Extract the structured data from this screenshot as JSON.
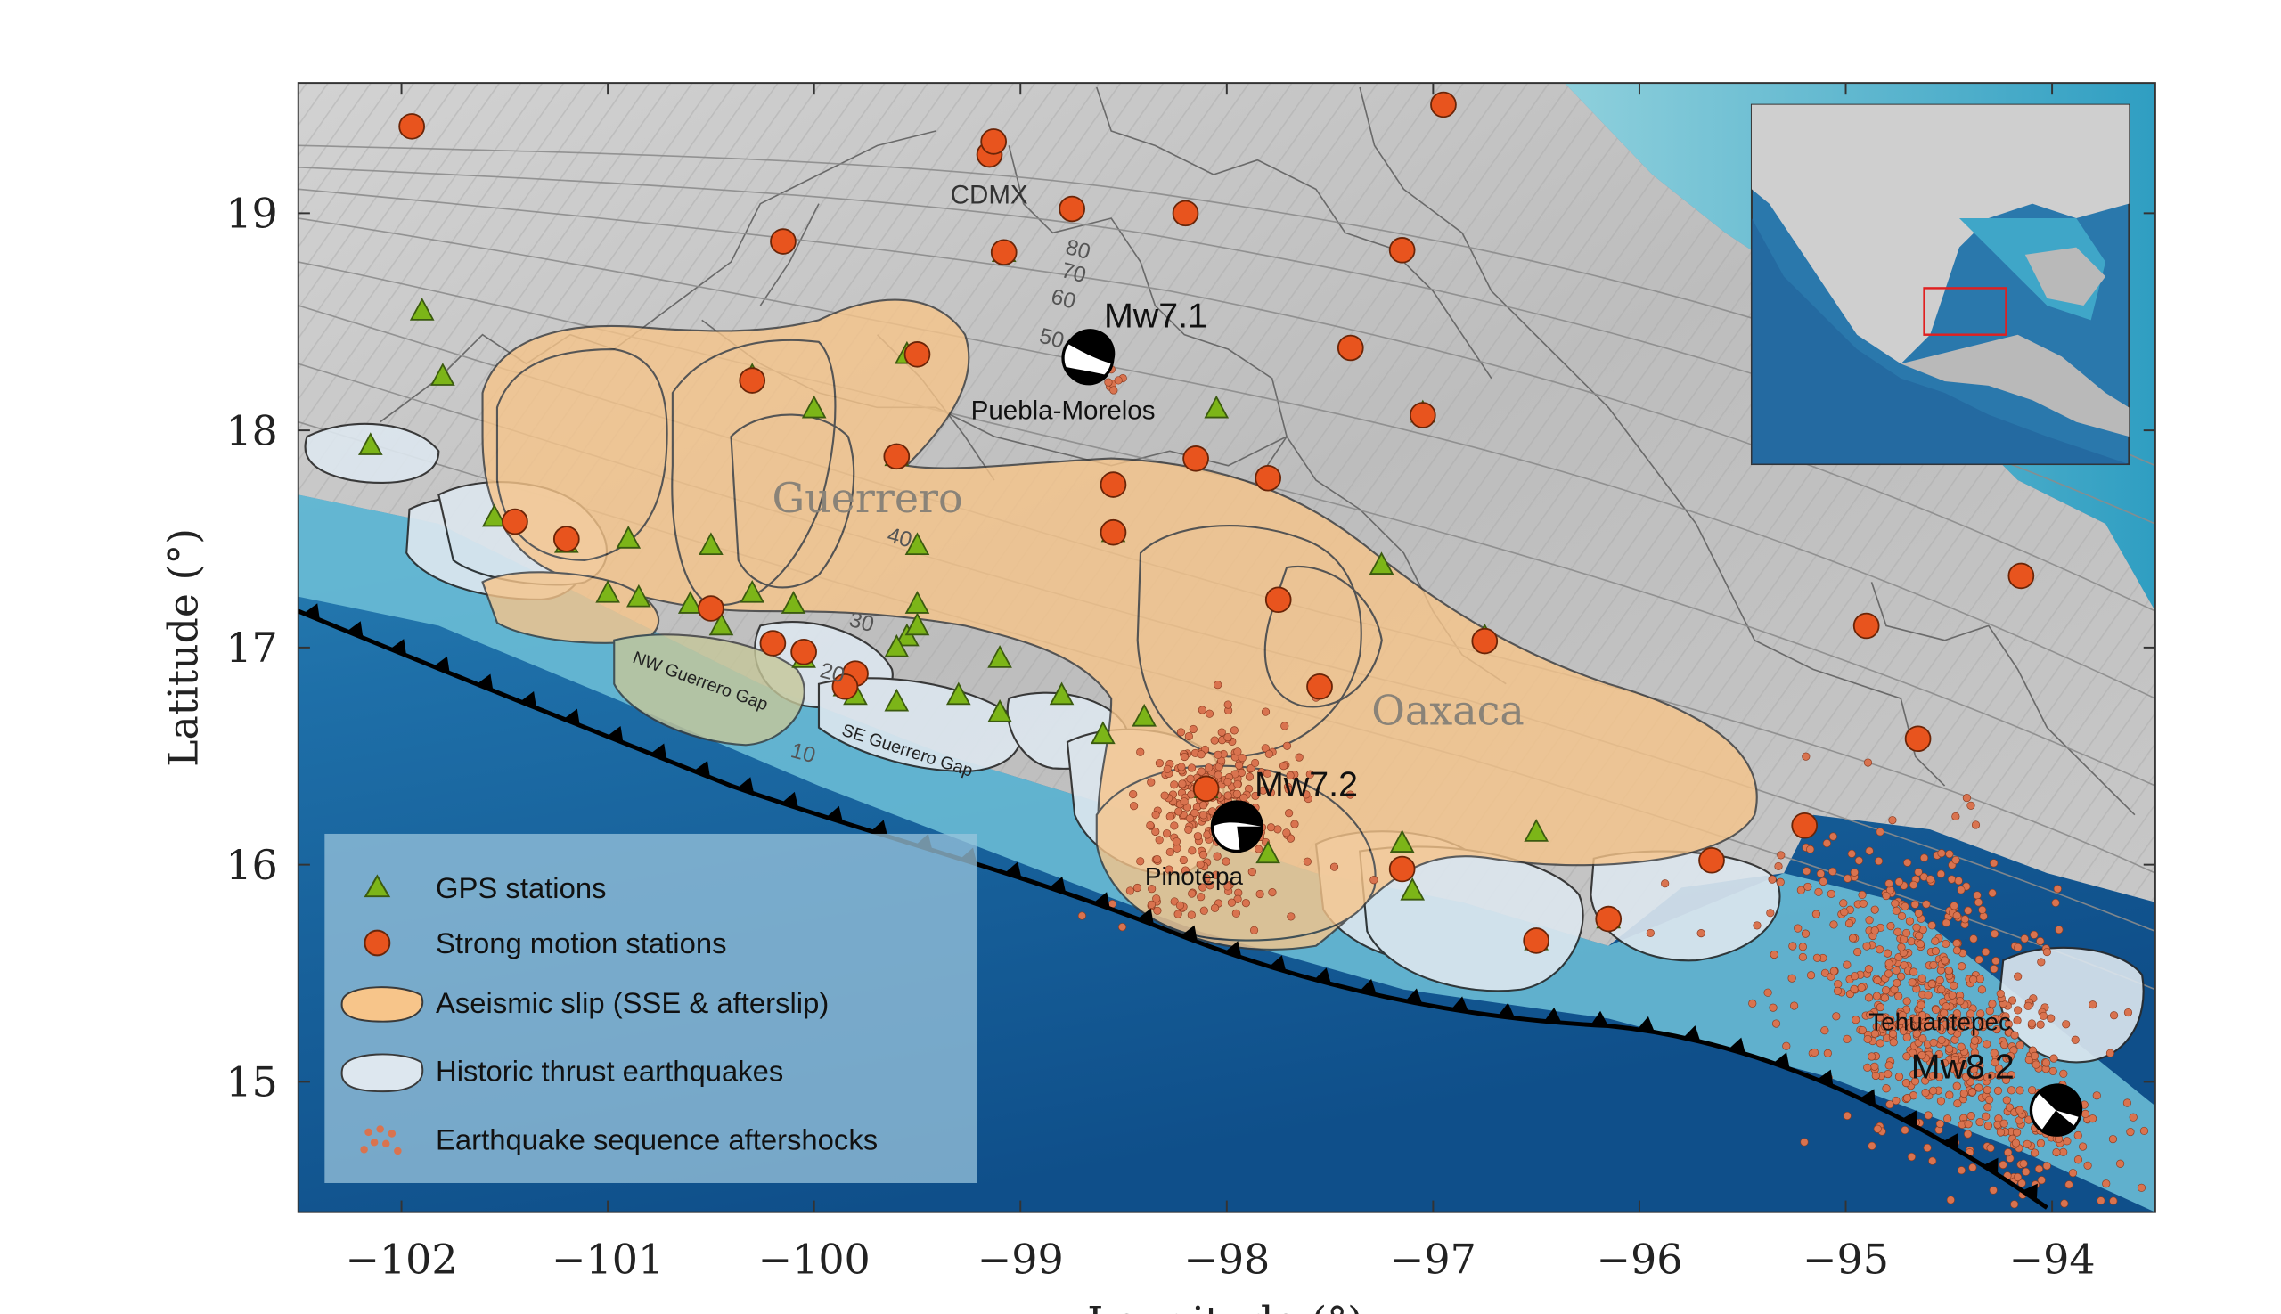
{
  "axes": {
    "xlabel": "Longitude (°)",
    "ylabel": "Latitude (°)",
    "xlim": [
      -102.5,
      -93.5
    ],
    "ylim": [
      14.4,
      19.6
    ],
    "xticks": [
      -102,
      -101,
      -100,
      -99,
      -98,
      -97,
      -96,
      -95,
      -94
    ],
    "yticks": [
      15,
      16,
      17,
      18,
      19
    ]
  },
  "regions": {
    "guerrero": "Guerrero",
    "oaxaca": "Oaxaca",
    "nw_gap": "NW Guerrero Gap",
    "se_gap": "SE Guerrero Gap"
  },
  "places": {
    "cdmx": "CDMX",
    "puebla": "Puebla-Morelos",
    "pinotepa": "Pinotepa",
    "tehuantepec": "Tehuantepec"
  },
  "events": {
    "mw71": "Mw7.1",
    "mw72": "Mw7.2",
    "mw82": "Mw8.2"
  },
  "contours": {
    "c10": "10",
    "c20": "20",
    "c30": "30",
    "c40": "40",
    "c50": "50",
    "c60": "60",
    "c70": "70",
    "c80": "80"
  },
  "legend": {
    "gps": "GPS stations",
    "strong": "Strong motion stations",
    "aseismic": "Aseismic slip (SSE & afterslip)",
    "historic": "Historic thrust earthquakes",
    "aftershocks": "Earthquake sequence aftershocks"
  },
  "colors": {
    "gps": "#7cb518",
    "strong": "#e8541e",
    "aseismic": "#f7c58a",
    "historic": "#dce6ee",
    "aftershock": "#d9734f",
    "trench": "#000000"
  },
  "chart_data": {
    "type": "scatter",
    "series": [
      {
        "name": "GPS stations",
        "points": [
          [
            -101.9,
            18.55
          ],
          [
            -101.8,
            18.25
          ],
          [
            -102.15,
            17.93
          ],
          [
            -101.55,
            17.6
          ],
          [
            -101.2,
            17.48
          ],
          [
            -100.9,
            17.5
          ],
          [
            -100.5,
            17.47
          ],
          [
            -100.3,
            18.25
          ],
          [
            -100.0,
            18.1
          ],
          [
            -99.6,
            17.88
          ],
          [
            -99.5,
            17.47
          ],
          [
            -101.0,
            17.25
          ],
          [
            -100.85,
            17.23
          ],
          [
            -100.6,
            17.2
          ],
          [
            -100.45,
            17.1
          ],
          [
            -100.3,
            17.25
          ],
          [
            -100.1,
            17.2
          ],
          [
            -100.05,
            16.95
          ],
          [
            -99.85,
            16.82
          ],
          [
            -99.8,
            16.78
          ],
          [
            -99.6,
            16.75
          ],
          [
            -99.55,
            17.05
          ],
          [
            -99.5,
            17.1
          ],
          [
            -99.5,
            17.2
          ],
          [
            -99.3,
            16.78
          ],
          [
            -99.1,
            16.95
          ],
          [
            -99.1,
            16.7
          ],
          [
            -98.8,
            16.78
          ],
          [
            -98.6,
            16.6
          ],
          [
            -98.4,
            16.68
          ],
          [
            -98.1,
            16.35
          ],
          [
            -97.8,
            16.05
          ],
          [
            -97.15,
            16.1
          ],
          [
            -97.1,
            15.88
          ],
          [
            -96.5,
            16.15
          ],
          [
            -96.5,
            15.65
          ],
          [
            -96.15,
            15.75
          ],
          [
            -97.25,
            17.38
          ],
          [
            -96.75,
            17.05
          ],
          [
            -97.05,
            18.08
          ],
          [
            -98.05,
            18.1
          ],
          [
            -98.55,
            17.53
          ],
          [
            -99.08,
            18.82
          ],
          [
            -99.55,
            18.35
          ],
          [
            -99.6,
            17.0
          ]
        ]
      },
      {
        "name": "Strong motion stations",
        "points": [
          [
            -101.95,
            19.4
          ],
          [
            -99.15,
            19.27
          ],
          [
            -99.13,
            19.33
          ],
          [
            -98.75,
            19.02
          ],
          [
            -98.2,
            19.0
          ],
          [
            -96.95,
            19.5
          ],
          [
            -100.15,
            18.87
          ],
          [
            -99.08,
            18.82
          ],
          [
            -97.15,
            18.83
          ],
          [
            -97.4,
            18.38
          ],
          [
            -99.5,
            18.35
          ],
          [
            -100.3,
            18.23
          ],
          [
            -97.05,
            18.07
          ],
          [
            -99.6,
            17.88
          ],
          [
            -98.15,
            17.87
          ],
          [
            -97.8,
            17.78
          ],
          [
            -98.55,
            17.75
          ],
          [
            -98.55,
            17.53
          ],
          [
            -101.45,
            17.58
          ],
          [
            -101.2,
            17.5
          ],
          [
            -100.5,
            17.18
          ],
          [
            -100.2,
            17.02
          ],
          [
            -100.05,
            16.98
          ],
          [
            -99.8,
            16.88
          ],
          [
            -99.85,
            16.82
          ],
          [
            -97.75,
            17.22
          ],
          [
            -97.55,
            16.82
          ],
          [
            -96.75,
            17.03
          ],
          [
            -98.1,
            16.35
          ],
          [
            -97.15,
            15.98
          ],
          [
            -96.15,
            15.75
          ],
          [
            -96.5,
            15.65
          ],
          [
            -95.65,
            16.02
          ],
          [
            -95.2,
            16.18
          ],
          [
            -94.9,
            17.1
          ],
          [
            -94.65,
            16.58
          ],
          [
            -94.15,
            17.33
          ]
        ]
      },
      {
        "name": "Earthquake sequence aftershocks",
        "clusters": [
          "Pinotepa",
          "Tehuantepec",
          "Puebla-Morelos"
        ]
      }
    ],
    "events": [
      {
        "label": "Mw7.1",
        "lon": -98.7,
        "lat": 18.35
      },
      {
        "label": "Mw7.2",
        "lon": -97.98,
        "lat": 16.2
      },
      {
        "label": "Mw8.2",
        "lon": -94.1,
        "lat": 14.9
      }
    ]
  }
}
